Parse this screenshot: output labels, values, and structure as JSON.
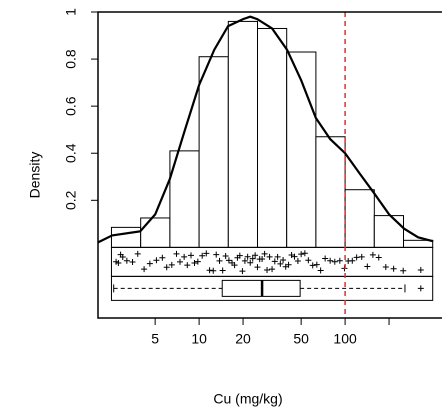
{
  "chart_data": {
    "type": "histogram",
    "xlabel": "Cu (mg/kg)",
    "ylabel": "Density",
    "xscale": "log",
    "xlim": [
      2.03,
      461
    ],
    "ylim": [
      -0.3,
      1.0
    ],
    "xticks": [
      5,
      10,
      20,
      50,
      100
    ],
    "xminor_ticks": [
      200
    ],
    "yticks": [
      0.2,
      0.4,
      0.6,
      0.8,
      1
    ],
    "bins": [
      2.51,
      3.98,
      6.31,
      10,
      15.85,
      25.12,
      39.81,
      63.1,
      100,
      158.5,
      251.2,
      398.1
    ],
    "values": [
      0.085,
      0.125,
      0.41,
      0.81,
      0.96,
      0.93,
      0.83,
      0.47,
      0.245,
      0.135,
      0.03
    ],
    "bar_color": "#ffffff",
    "density_curve": {
      "color": "#000000",
      "x": [
        2.03,
        2.54,
        3.95,
        5,
        6.3,
        8,
        10,
        12.7,
        15.8,
        20,
        22.4,
        25,
        31.6,
        40,
        50,
        63,
        79,
        100,
        127,
        158,
        200,
        253,
        316,
        401
      ],
      "values": [
        0.021,
        0.051,
        0.068,
        0.14,
        0.29,
        0.5,
        0.69,
        0.84,
        0.94,
        0.97,
        0.98,
        0.97,
        0.93,
        0.84,
        0.71,
        0.55,
        0.46,
        0.4,
        0.31,
        0.23,
        0.14,
        0.08,
        0.043,
        0.026
      ]
    },
    "rug": {
      "values": [
        2.7,
        2.8,
        2.9,
        3.0,
        3.2,
        3.5,
        3.8,
        4.2,
        4.6,
        5.1,
        5.6,
        6.0,
        6.5,
        7.0,
        7.4,
        7.9,
        8.3,
        8.8,
        9.3,
        9.8,
        10.5,
        11.2,
        11.8,
        12.5,
        13.1,
        13.8,
        14.5,
        15.2,
        16.0,
        16.8,
        17.5,
        18.3,
        19.0,
        19.8,
        20.6,
        21.5,
        22.4,
        23.3,
        24.2,
        25.1,
        26.0,
        27.0,
        28.1,
        29.2,
        30.4,
        31.6,
        33,
        34.5,
        36,
        37.6,
        39.2,
        41,
        43,
        45,
        47.5,
        50,
        53,
        56,
        60,
        64,
        68,
        73,
        79,
        85,
        92,
        99,
        105,
        112,
        120,
        130,
        142,
        155,
        170,
        190,
        215,
        250,
        330
      ]
    },
    "boxplot": {
      "min": 2.6,
      "q1": 14.4,
      "median": 27,
      "q3": 49.2,
      "max": 257,
      "outliers": [
        330
      ]
    },
    "vline": 100,
    "vline_color": "#e03030"
  }
}
